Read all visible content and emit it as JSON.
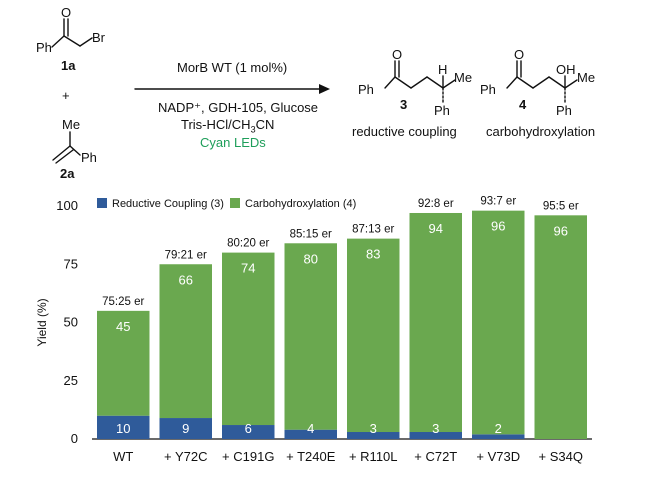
{
  "scheme": {
    "reactant_a_label": "1a",
    "reactant_b_label": "2a",
    "plus": "+",
    "conditions": {
      "line1": "MorB WT (1 mol%)",
      "line2": "NADP⁺, GDH-105, Glucose",
      "line3_prefix": "Tris-HCl/CH",
      "line3_sub": "3",
      "line3_suffix": "CN",
      "line4": "Cyan LEDs"
    },
    "product3_label": "3",
    "product4_label": "4",
    "product3_name": "reductive coupling",
    "product4_name": "carbohydroxylation",
    "atom_ph": "Ph",
    "atom_br": "Br",
    "atom_me": "Me",
    "atom_o": "O",
    "atom_h": "H",
    "atom_oh": "OH",
    "colors": {
      "cyan_leds": "#1e9e5a"
    }
  },
  "chart_data": {
    "type": "bar",
    "stacked": true,
    "categories": [
      "WT",
      "+ Y72C",
      "+ C191G",
      "+ T240E",
      "+ R110L",
      "+ C72T",
      "+ V73D",
      "+ S34Q"
    ],
    "series": [
      {
        "name": "Reductive Coupling (3)",
        "color": "#2f5b9a",
        "values": [
          10,
          9,
          6,
          4,
          3,
          3,
          2,
          0
        ]
      },
      {
        "name": "Carbohydroxylation (4)",
        "color": "#6aa84f",
        "values": [
          45,
          66,
          74,
          80,
          83,
          94,
          96,
          96
        ]
      }
    ],
    "segment_labels": {
      "bottom": [
        "10",
        "9",
        "6",
        "4",
        "3",
        "3",
        "2",
        ""
      ],
      "top": [
        "45",
        "66",
        "74",
        "80",
        "83",
        "94",
        "96",
        "96"
      ]
    },
    "annotations": [
      "75:25 er",
      "79:21 er",
      "80:20 er",
      "85:15 er",
      "87:13 er",
      "92:8 er",
      "93:7 er",
      "95:5 er"
    ],
    "ylabel": "Yield (%)",
    "ylim": [
      0,
      100
    ],
    "yticks": [
      0,
      25,
      50,
      75,
      100
    ],
    "legend_position": "top-left",
    "grid": false
  }
}
